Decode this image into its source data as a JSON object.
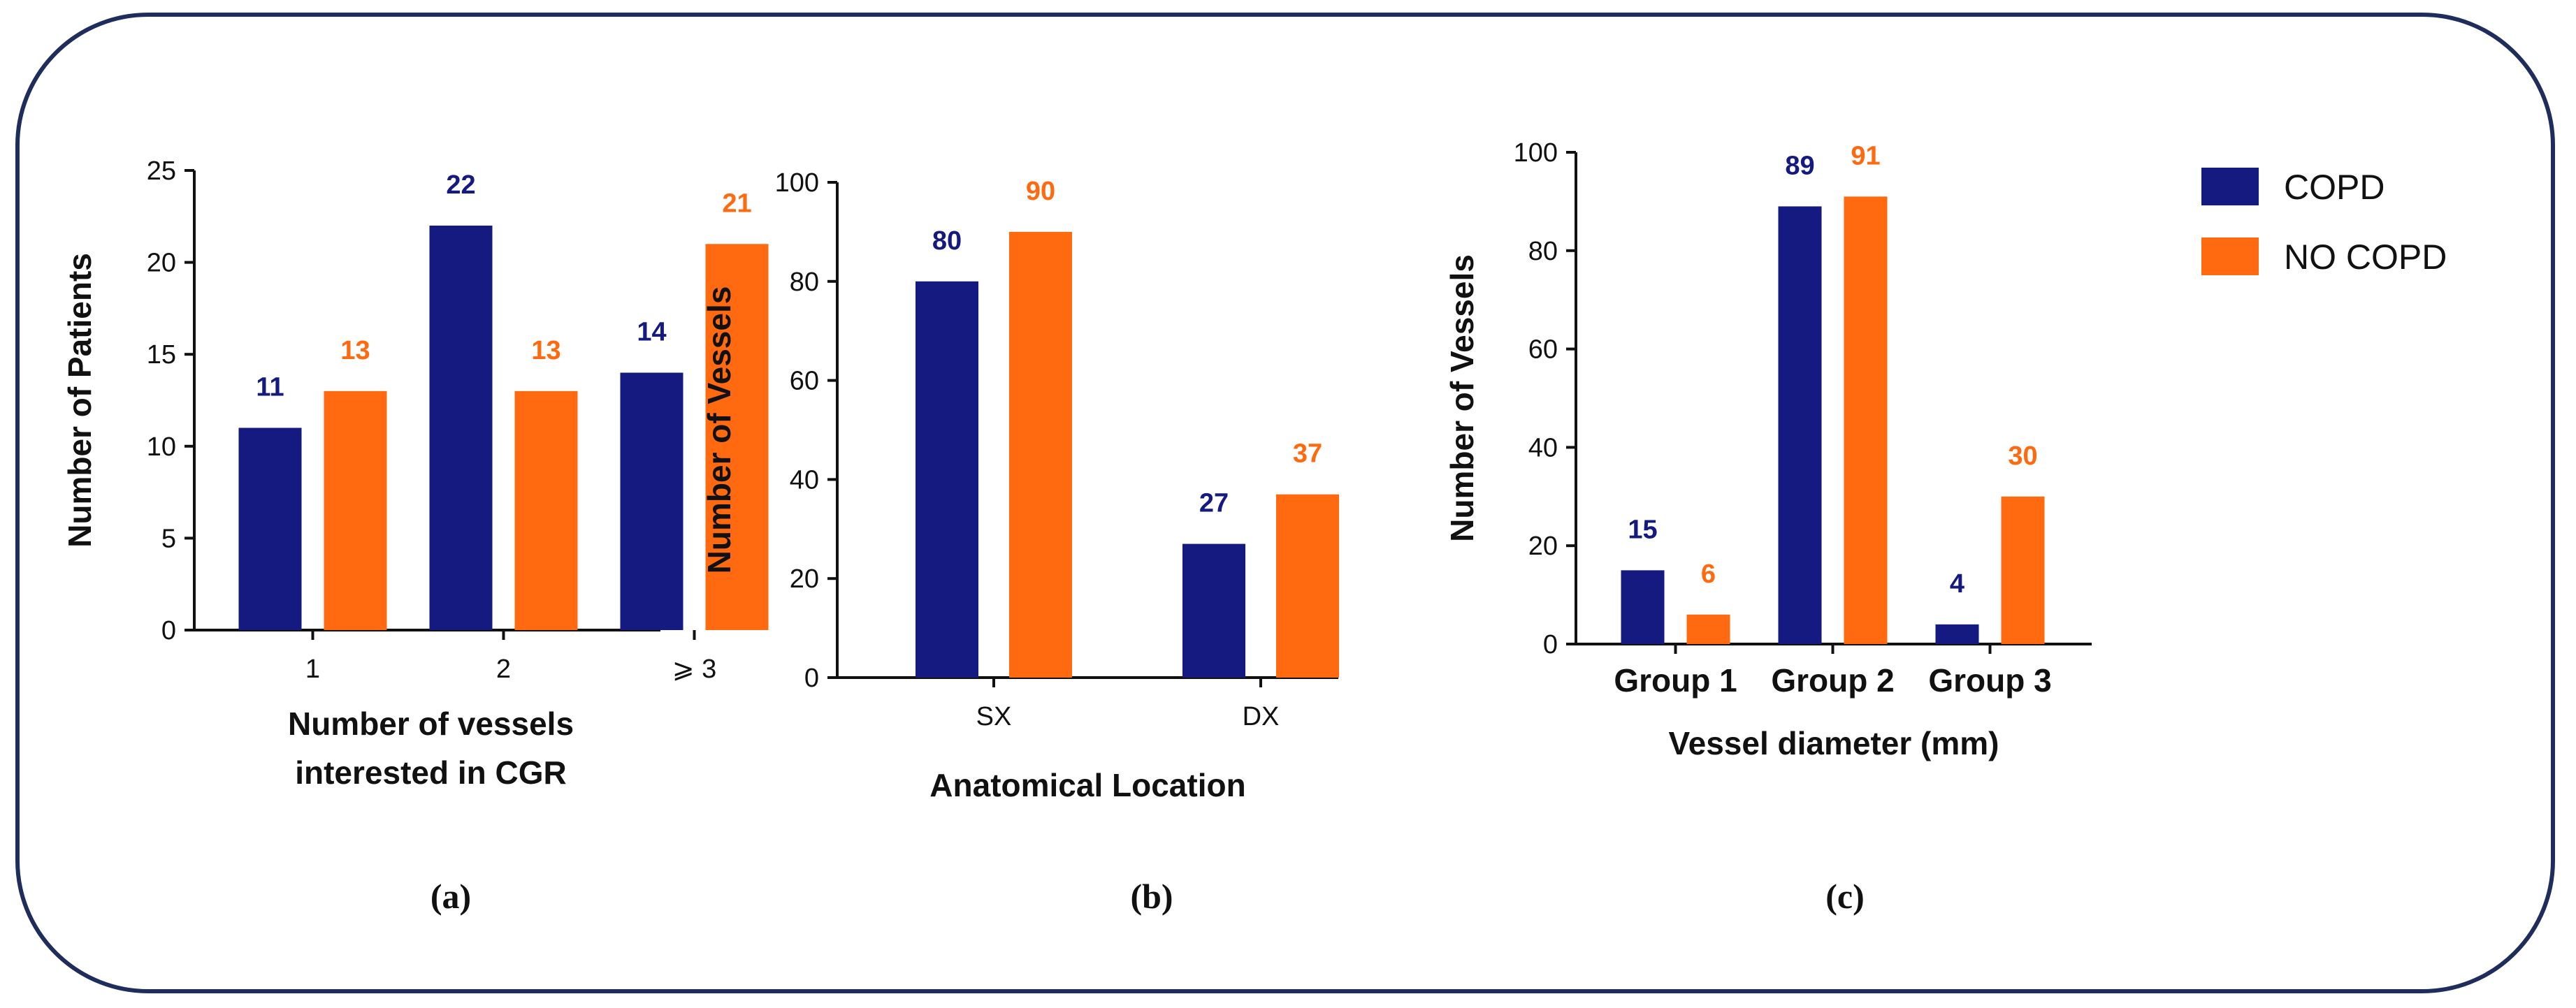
{
  "colors": {
    "copd": "#141a80",
    "no_copd": "#ff6a10",
    "border": "#1f2d5c"
  },
  "legend": {
    "series": [
      "COPD",
      "NO COPD"
    ]
  },
  "chart_data": [
    {
      "type": "bar",
      "panel_label": "(a)",
      "categories": [
        "1",
        "2",
        "⩾ 3"
      ],
      "series": [
        {
          "name": "COPD",
          "values": [
            11,
            22,
            14
          ]
        },
        {
          "name": "NO COPD",
          "values": [
            13,
            13,
            21
          ]
        }
      ],
      "xlabel": [
        "Number of vessels",
        "interested in CGR"
      ],
      "ylabel": "Number of Patients",
      "ylim": [
        0,
        25
      ],
      "yticks": [
        "0",
        "5",
        "10",
        "15",
        "20",
        "25"
      ]
    },
    {
      "type": "bar",
      "panel_label": "(b)",
      "categories": [
        "SX",
        "DX"
      ],
      "series": [
        {
          "name": "COPD",
          "values": [
            80,
            27
          ]
        },
        {
          "name": "NO COPD",
          "values": [
            90,
            37
          ]
        }
      ],
      "xlabel": [
        "Anatomical Location"
      ],
      "ylabel": "Number of Vessels",
      "ylim": [
        0,
        100
      ],
      "yticks": [
        "0",
        "20",
        "40",
        "60",
        "80",
        "100"
      ]
    },
    {
      "type": "bar",
      "panel_label": "(c)",
      "categories": [
        "Group 1",
        "Group 2",
        "Group 3"
      ],
      "series": [
        {
          "name": "COPD",
          "values": [
            15,
            89,
            4
          ]
        },
        {
          "name": "NO COPD",
          "values": [
            6,
            91,
            30
          ]
        }
      ],
      "xlabel": [
        "Vessel diameter (mm)"
      ],
      "ylabel": "Number of Vessels",
      "ylim": [
        0,
        100
      ],
      "yticks": [
        "0",
        "20",
        "40",
        "60",
        "80",
        "100"
      ]
    }
  ]
}
